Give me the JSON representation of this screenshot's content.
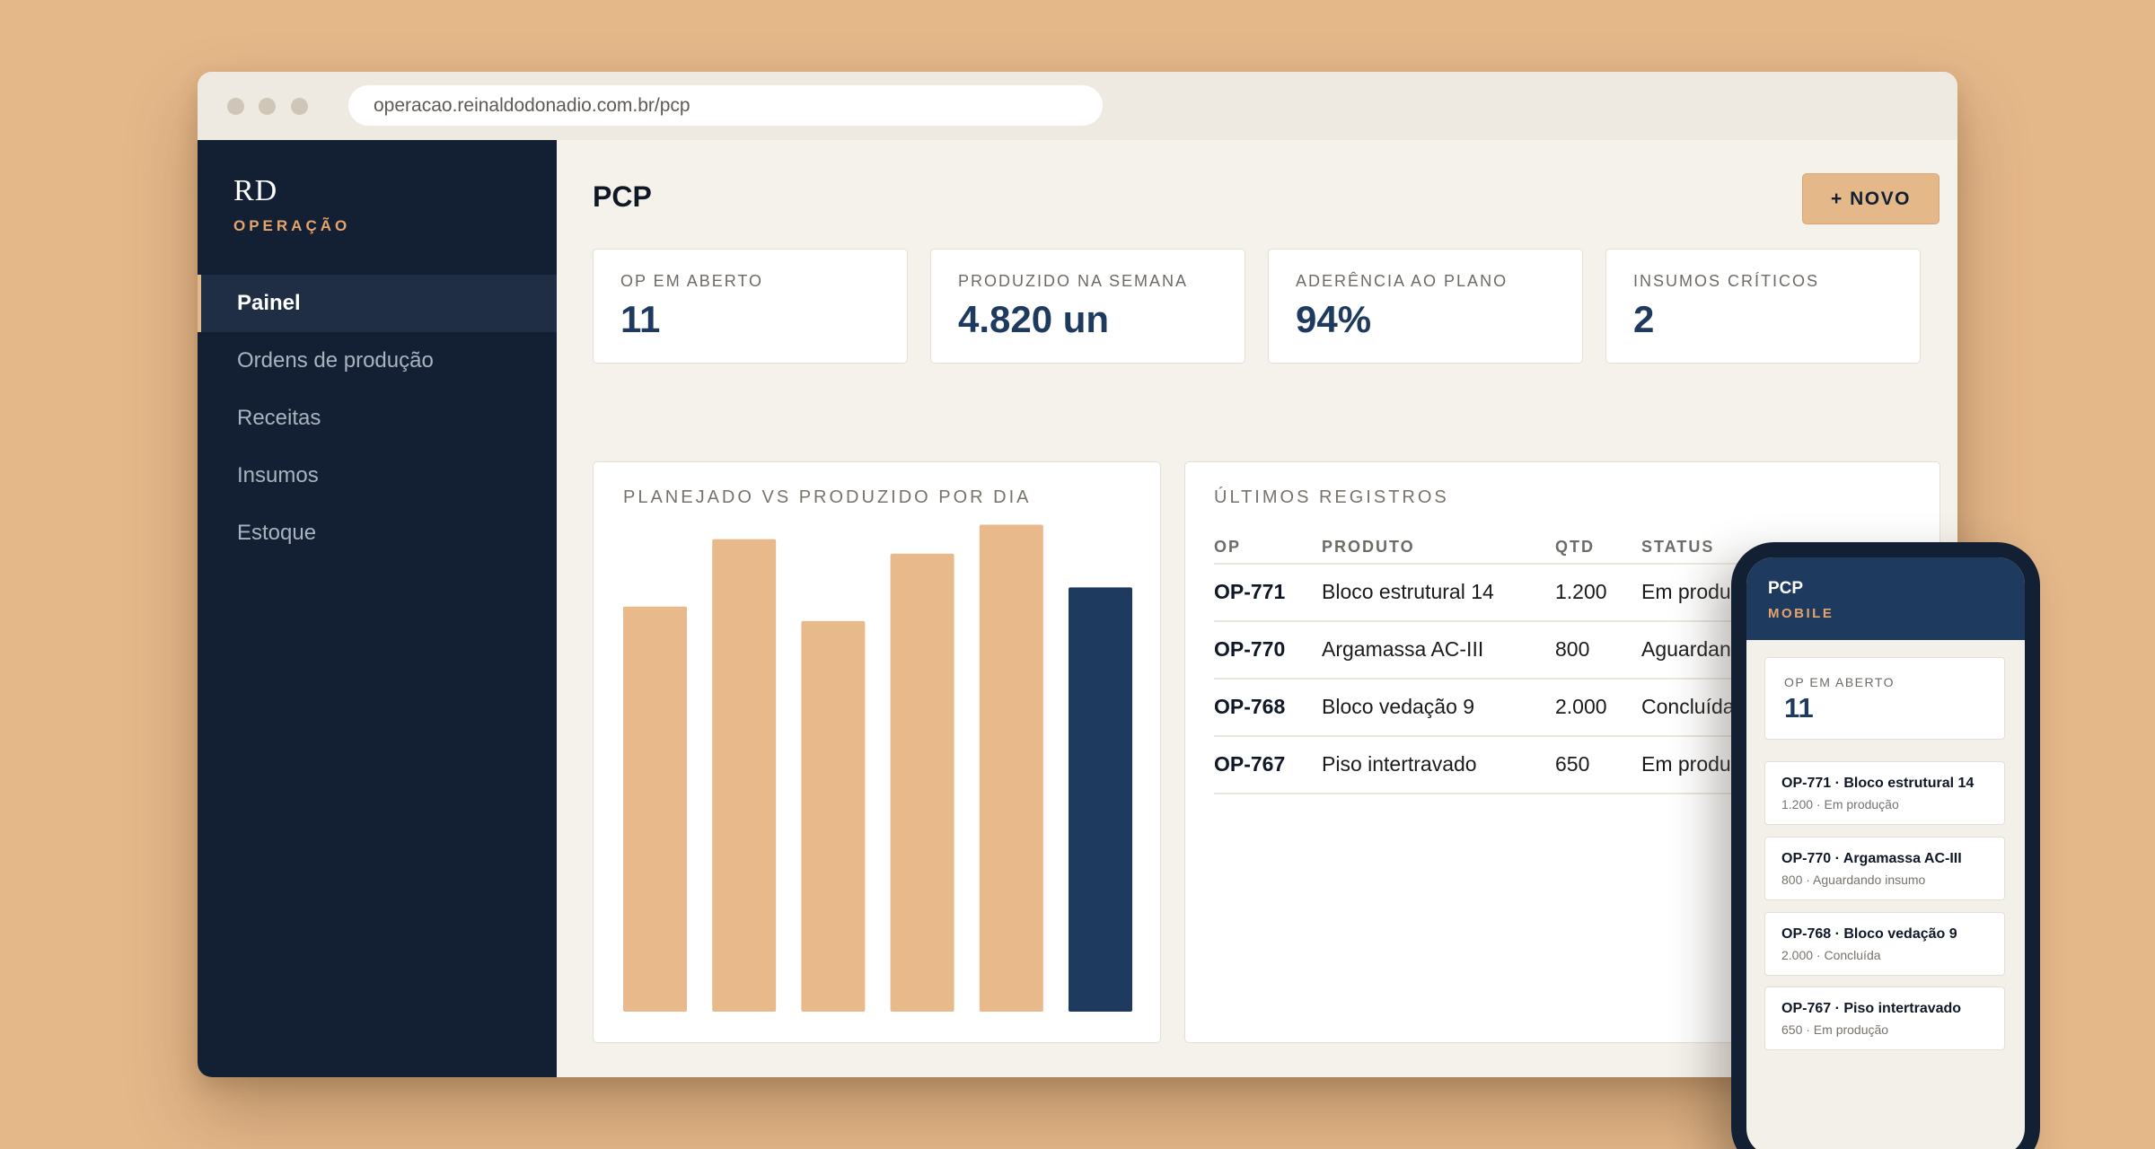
{
  "browser": {
    "url": "operacao.reinaldodonadio.com.br/pcp"
  },
  "sidebar": {
    "logo_mark": "RD",
    "logo_sub": "OPERAÇÃO",
    "items": [
      {
        "label": "Painel",
        "active": true
      },
      {
        "label": "Ordens de produção",
        "active": false
      },
      {
        "label": "Receitas",
        "active": false
      },
      {
        "label": "Insumos",
        "active": false
      },
      {
        "label": "Estoque",
        "active": false
      }
    ]
  },
  "header": {
    "title": "PCP",
    "new_button": "+ NOVO"
  },
  "kpis": [
    {
      "label": "OP EM ABERTO",
      "value": "11"
    },
    {
      "label": "PRODUZIDO NA SEMANA",
      "value": "4.820 un"
    },
    {
      "label": "ADERÊNCIA AO PLANO",
      "value": "94%"
    },
    {
      "label": "INSUMOS CRÍTICOS",
      "value": "2"
    }
  ],
  "chart_card": {
    "title": "PLANEJADO VS PRODUZIDO POR DIA"
  },
  "chart_data": {
    "type": "bar",
    "title": "PLANEJADO VS PRODUZIDO POR DIA",
    "categories": [
      "",
      "",
      "",
      "",
      "",
      ""
    ],
    "values": [
      84,
      98,
      81,
      95,
      101,
      88
    ],
    "ylim": [
      0,
      105
    ],
    "highlight_index": 5,
    "colors": {
      "default": "#E8B98A",
      "highlight": "#1E3A5F"
    },
    "grid": false
  },
  "records": {
    "title": "ÚLTIMOS REGISTROS",
    "columns": [
      "OP",
      "PRODUTO",
      "QTD",
      "STATUS"
    ],
    "rows": [
      {
        "op": "OP-771",
        "produto": "Bloco estrutural 14",
        "qtd": "1.200",
        "status": "Em produção"
      },
      {
        "op": "OP-770",
        "produto": "Argamassa AC-III",
        "qtd": "800",
        "status": "Aguardando insumo"
      },
      {
        "op": "OP-768",
        "produto": "Bloco vedação 9",
        "qtd": "2.000",
        "status": "Concluída"
      },
      {
        "op": "OP-767",
        "produto": "Piso intertravado",
        "qtd": "650",
        "status": "Em produção"
      }
    ]
  },
  "mobile": {
    "title": "PCP",
    "subtitle": "MOBILE",
    "kpi_label": "OP EM ABERTO",
    "kpi_value": "11",
    "items": [
      {
        "title": "OP-771 · Bloco estrutural 14",
        "sub": "1.200 · Em produção"
      },
      {
        "title": "OP-770 · Argamassa AC-III",
        "sub": "800 · Aguardando insumo"
      },
      {
        "title": "OP-768 · Bloco vedação 9",
        "sub": "2.000 · Concluída"
      },
      {
        "title": "OP-767 · Piso intertravado",
        "sub": "650 · Em produção"
      }
    ]
  },
  "colors": {
    "background": "#E5B88A",
    "sidebar": "#132034",
    "accent": "#E5B88A",
    "navy": "#1E3A5F"
  }
}
